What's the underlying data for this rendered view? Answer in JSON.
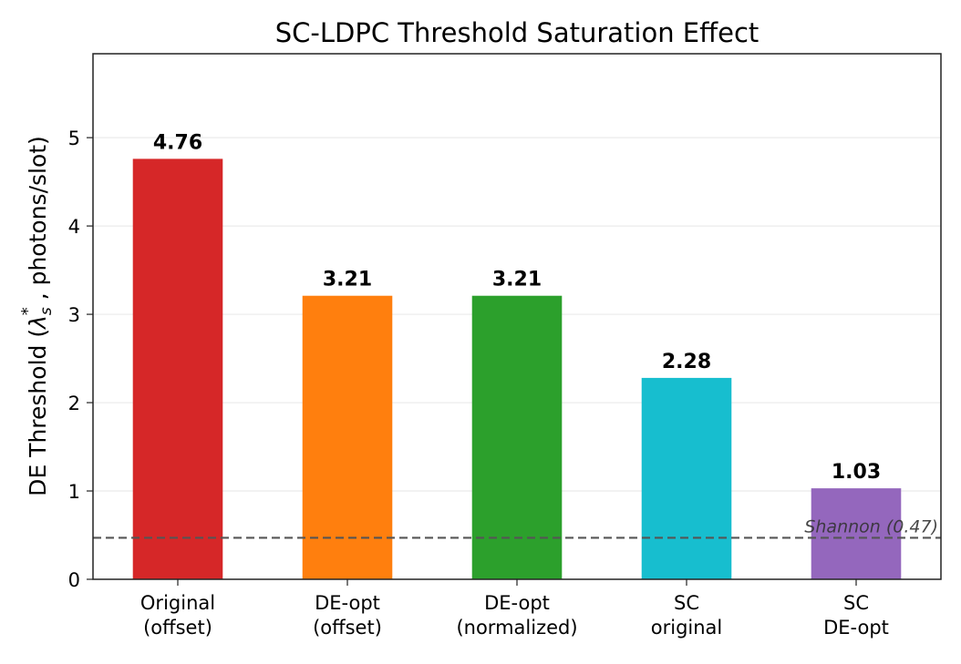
{
  "chart_data": {
    "type": "bar",
    "title": "SC-LDPC Threshold Saturation Effect",
    "xlabel": "",
    "ylabel": {
      "prefix": "DE Threshold (",
      "symbol": "λ",
      "sub": "s",
      "sup": "*",
      "suffix": " , photons/slot)"
    },
    "categories": [
      [
        "Original",
        "(offset)"
      ],
      [
        "DE-opt",
        "(offset)"
      ],
      [
        "DE-opt",
        "(normalized)"
      ],
      [
        "SC",
        "original"
      ],
      [
        "SC",
        "DE-opt"
      ]
    ],
    "values": [
      4.76,
      3.21,
      3.21,
      2.28,
      1.03
    ],
    "data_labels": [
      "4.76",
      "3.21",
      "3.21",
      "2.28",
      "1.03"
    ],
    "colors": [
      "#d62728",
      "#ff7f0e",
      "#2ca02c",
      "#17becf",
      "#9467bd"
    ],
    "ylim": [
      0,
      5.95
    ],
    "yticks": [
      0,
      1,
      2,
      3,
      4,
      5
    ],
    "grid": "horizontal",
    "reference_line": {
      "value": 0.47,
      "label": "Shannon (0.47)",
      "style": "dashed",
      "color": "#555555"
    }
  }
}
